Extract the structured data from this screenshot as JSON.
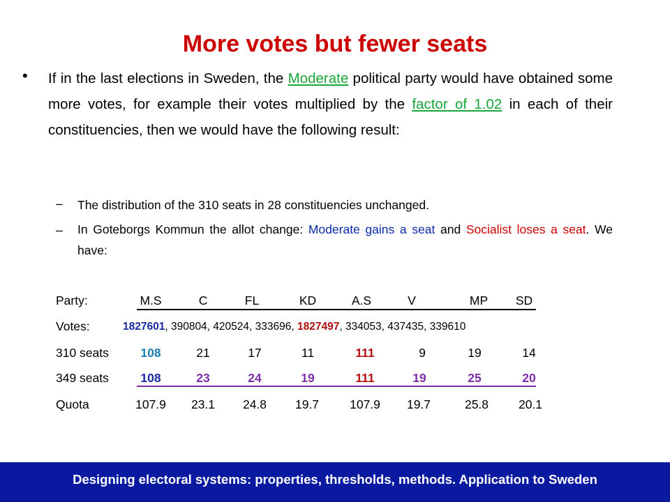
{
  "title": "More votes but fewer seats",
  "bullet": {
    "t1": "If in the last elections in Sweden, the ",
    "moderate": "Moderate",
    "t2": " political party would have obtained some more votes, for example their votes multiplied by the ",
    "factor": "factor of 1.02",
    "t3": " in each of their constituencies, then we would have the following result:"
  },
  "sub1": "The distribution of the 310 seats in 28 constituencies unchanged.",
  "sub2": {
    "t1": "In Goteborgs Kommun the allot change: ",
    "gain": "Moderate gains a seat",
    "t2": " and ",
    "lose": "Socialist loses a seat",
    "t3": ". We have:"
  },
  "table": {
    "party_label": "Party:",
    "parties": [
      "M.S",
      "C",
      "FL",
      "KD",
      "A.S",
      "V",
      "MP",
      "SD"
    ],
    "votes_label": "Votes:",
    "votes_ms": "1827601",
    "votes_mid": ", 390804, 420524, 333696, ",
    "votes_as": "1827497",
    "votes_end": ", 334053, 437435, 339610",
    "seats310_label": "310 seats",
    "seats310": [
      "108",
      "21",
      "17",
      "11",
      "111",
      "9",
      "19",
      "14"
    ],
    "seats349_label": "349 seats",
    "seats349": [
      "108",
      "23",
      "24",
      "19",
      "111",
      "19",
      "25",
      "20"
    ],
    "quota_label": "Quota",
    "quota": [
      "107.9",
      "23.1",
      "24.8",
      "19.7",
      "107.9",
      "19.7",
      "25.8",
      "20.1"
    ]
  },
  "footer": "Designing electoral systems: properties, thresholds, methods. Application to Sweden"
}
